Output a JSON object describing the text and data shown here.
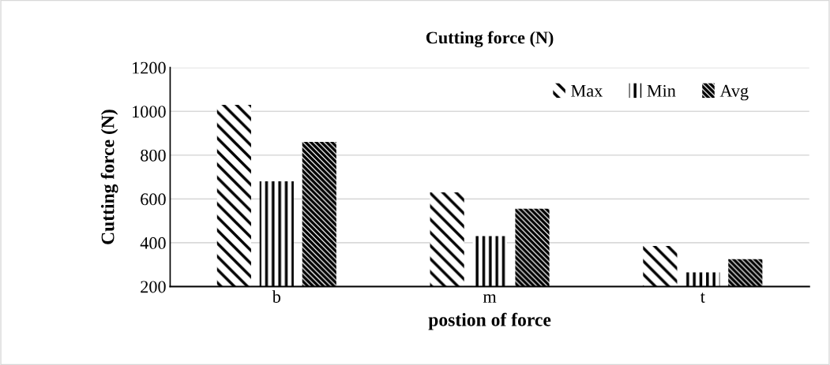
{
  "chart_data": {
    "type": "bar",
    "title": "Cutting force (N)",
    "xlabel": "postion of force",
    "ylabel": "Cutting force (N)",
    "categories": [
      "b",
      "m",
      "t"
    ],
    "series": [
      {
        "name": "Max",
        "color": "#000000",
        "values": [
          1030,
          630,
          385
        ]
      },
      {
        "name": "Min",
        "color": "#000000",
        "values": [
          680,
          430,
          265
        ]
      },
      {
        "name": "Avg",
        "color": "#000000",
        "values": [
          860,
          555,
          325
        ]
      }
    ],
    "ylim": [
      200,
      1200
    ],
    "yticks": [
      200,
      400,
      600,
      800,
      1000,
      1200
    ],
    "grid": "y",
    "legend": "top right"
  }
}
